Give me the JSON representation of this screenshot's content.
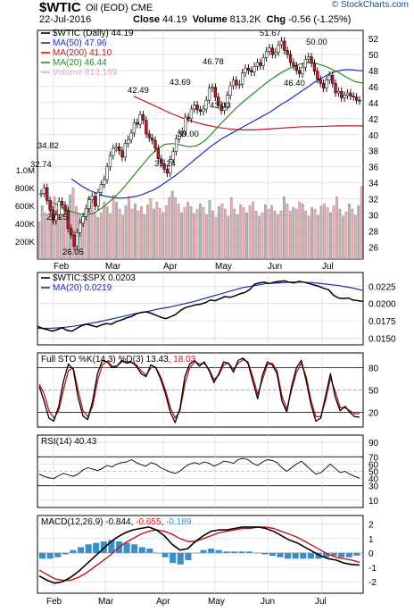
{
  "header": {
    "ticker": "$WTIC",
    "ticker_sub": "Oil (EOD)  CME",
    "logo": "© StockCharts.com",
    "date": "22-Jul-2016",
    "close_label": "Close",
    "close_value": "44.19",
    "volume_label": "Volume",
    "volume_value": "813.2K",
    "chg_label": "Chg",
    "chg_value": "-0.56 (-1.25%)"
  },
  "colors": {
    "price_line": "#000000",
    "ma50": "#1f2fb3",
    "ma200": "#c4141c",
    "ma20": "#2a8a2a",
    "volume_fill": "#e9aab0",
    "volume_fill_gray": "#b3b3b3",
    "macd_hist": "#3b8fc8",
    "grid": "#d0d0d0"
  },
  "chart_data": [
    {
      "type": "line",
      "panel": "price",
      "title": "$WTIC (Daily) 44.19",
      "ylim": [
        24.5,
        53
      ],
      "y_ticks": [
        26,
        28,
        30,
        32,
        34,
        36,
        38,
        40,
        42,
        44,
        46,
        48,
        50,
        52
      ],
      "x_tick_labels": [
        "Feb",
        "Mar",
        "Apr",
        "May",
        "Jun",
        "Jul"
      ],
      "legend": [
        {
          "name": "$WTIC (Daily) 44.19",
          "color": "#000000"
        },
        {
          "name": "MA(50) 47.96",
          "color": "#1f2fb3"
        },
        {
          "name": "MA(200) 41.10",
          "color": "#c4141c"
        },
        {
          "name": "MA(20) 46.44",
          "color": "#2a8a2a"
        },
        {
          "name": "Volume 813,189",
          "color": "#e9aab0"
        }
      ],
      "series": [
        {
          "name": "$WTIC",
          "values": [
            32.7,
            33.4,
            31.8,
            30.6,
            29.3,
            30.0,
            31.7,
            31.2,
            30.5,
            28.3,
            27.5,
            26.1,
            27.8,
            29.0,
            29.8,
            30.8,
            31.9,
            32.3,
            31.1,
            32.8,
            33.8,
            34.4,
            36.0,
            37.4,
            38.3,
            38.5,
            38.0,
            37.2,
            38.9,
            39.4,
            40.2,
            41.5,
            41.3,
            42.5,
            41.8,
            40.1,
            39.6,
            39.3,
            38.3,
            37.0,
            36.4,
            35.7,
            35.2,
            36.9,
            37.9,
            39.5,
            40.2,
            40.4,
            42.2,
            42.0,
            43.2,
            43.7,
            43.1,
            42.9,
            43.2,
            44.3,
            45.8,
            45.9,
            44.7,
            43.7,
            43.0,
            43.5,
            44.9,
            46.1,
            46.8,
            46.2,
            46.3,
            47.7,
            48.3,
            48.0,
            47.8,
            48.5,
            49.0,
            48.6,
            49.6,
            50.4,
            50.8,
            50.0,
            50.3,
            51.2,
            51.67,
            50.5,
            50.0,
            49.0,
            48.6,
            48.0,
            47.6,
            48.4,
            49.4,
            49.7,
            48.9,
            47.9,
            46.9,
            46.4,
            45.8,
            46.8,
            47.4,
            46.4,
            45.2,
            45.4,
            44.6,
            44.9,
            45.2,
            44.8,
            44.7,
            44.3,
            44.2
          ]
        },
        {
          "name": "MA(50)",
          "values": [
            34.5,
            34.0,
            33.5,
            33.1,
            32.8,
            32.5,
            32.3,
            32.2,
            32.1,
            32.1,
            32.2,
            32.3,
            32.5,
            32.8,
            33.1,
            33.5,
            34.0,
            34.5,
            35.0,
            35.6,
            36.2,
            36.8,
            37.4,
            38.0,
            38.6,
            39.1,
            39.6,
            40.0,
            40.4,
            40.8,
            41.2,
            41.6,
            42.0,
            42.4,
            42.8,
            43.3,
            43.8,
            44.2,
            44.7,
            45.2,
            45.7,
            46.2,
            46.7,
            47.1,
            47.5,
            47.8,
            48.0,
            48.1,
            48.1,
            48.0,
            47.96
          ]
        },
        {
          "name": "MA(200)",
          "values": [
            44.8,
            44.1,
            43.4,
            42.7,
            42.1,
            41.6,
            41.2,
            40.9,
            40.7,
            40.6,
            40.6,
            40.7,
            40.8,
            40.9,
            41.0,
            41.0,
            41.05,
            41.1,
            41.1,
            41.1
          ]
        },
        {
          "name": "MA(20)",
          "values": [
            31.5,
            31.0,
            30.5,
            30.2,
            30.0,
            30.2,
            30.8,
            31.6,
            32.5,
            33.6,
            34.8,
            36.0,
            37.2,
            38.2,
            38.8,
            38.9,
            38.7,
            38.5,
            38.6,
            39.2,
            40.2,
            41.3,
            42.3,
            43.3,
            44.2,
            45.0,
            45.8,
            46.6,
            47.3,
            47.9,
            48.4,
            48.8,
            49.0,
            48.9,
            48.6,
            48.2,
            47.7,
            47.1,
            46.6,
            46.44
          ]
        },
        {
          "name": "Volume",
          "unit": "shares",
          "values": [
            420000,
            600000,
            520000,
            480000,
            650000,
            700000,
            560000,
            480000,
            520000,
            610000,
            720000,
            800000,
            590000,
            510000,
            480000,
            560000,
            690000,
            610000,
            520000,
            470000,
            520000,
            640000,
            590000,
            510000,
            720000,
            640000,
            560000,
            490000,
            600000,
            700000,
            560000,
            620000,
            540000,
            590000,
            500000,
            610000,
            680000,
            560000,
            640000,
            570000,
            520000,
            600000,
            690000,
            760000,
            690000,
            620000,
            520000,
            580000,
            640000,
            590000,
            510000,
            560000,
            620000,
            580000,
            500000,
            660000,
            540000,
            470000,
            590000,
            620000,
            560000,
            480000,
            690000,
            560000,
            500000,
            610000,
            580000,
            520000,
            600000,
            640000,
            540000,
            480000,
            520000,
            610000,
            560000,
            600000,
            540000,
            500000,
            540000,
            700000,
            620000,
            540000,
            580000,
            560000,
            640000,
            620000,
            540000,
            480000,
            580000,
            560000,
            490000,
            600000,
            620000,
            580000,
            520000,
            600000,
            700000,
            560000,
            480000,
            530000,
            620000,
            560000,
            490000,
            600000,
            813189
          ]
        }
      ],
      "volume_axis": {
        "labels": [
          "200K",
          "400K",
          "600K",
          "800K",
          "1.0M"
        ],
        "values": [
          200000,
          400000,
          600000,
          800000,
          1000000
        ]
      },
      "annotations": [
        "34.82",
        "32.74",
        "29.25",
        "26.05",
        "42.49",
        "35.24",
        "39.00",
        "43.69",
        "46.78",
        "43.03",
        "51.67",
        "50.00",
        "46.40"
      ]
    },
    {
      "type": "line",
      "panel": "ratio",
      "title": "$WTIC:$SPX 0.0203",
      "ylim": [
        0.014,
        0.0245
      ],
      "y_ticks": [
        0.015,
        0.0175,
        0.02,
        0.0225
      ],
      "y_tick_labels": [
        "0.0150",
        "0.0175",
        "0.0200",
        "0.0225"
      ],
      "legend": [
        {
          "name": "$WTIC:$SPX 0.0203",
          "color": "#000000"
        },
        {
          "name": "MA(20) 0.0219",
          "color": "#1f2fb3"
        }
      ],
      "series": [
        {
          "name": "$WTIC:$SPX",
          "values": [
            0.0167,
            0.0164,
            0.0162,
            0.016,
            0.0162,
            0.0165,
            0.0161,
            0.016,
            0.0164,
            0.0168,
            0.017,
            0.0168,
            0.0166,
            0.0169,
            0.0171,
            0.017,
            0.0174,
            0.0176,
            0.0179,
            0.0181,
            0.0185,
            0.0187,
            0.0188,
            0.0186,
            0.0183,
            0.018,
            0.0178,
            0.0181,
            0.0184,
            0.019,
            0.0194,
            0.0196,
            0.0198,
            0.0199,
            0.0201,
            0.0205,
            0.0204,
            0.0207,
            0.021,
            0.0209,
            0.0211,
            0.0214,
            0.0216,
            0.022,
            0.0228,
            0.023,
            0.0231,
            0.0229,
            0.0231,
            0.0232,
            0.0233,
            0.0231,
            0.023,
            0.0232,
            0.0231,
            0.0229,
            0.0227,
            0.0225,
            0.0222,
            0.022,
            0.0212,
            0.0208,
            0.0207,
            0.0208,
            0.0205,
            0.0204,
            0.0203
          ]
        },
        {
          "name": "MA(20)",
          "values": [
            0.0164,
            0.0164,
            0.0165,
            0.0167,
            0.017,
            0.0173,
            0.0177,
            0.0181,
            0.0185,
            0.0188,
            0.0192,
            0.0195,
            0.0199,
            0.0203,
            0.0208,
            0.0213,
            0.0218,
            0.0223,
            0.0226,
            0.0229,
            0.023,
            0.0231,
            0.0231,
            0.023,
            0.0228,
            0.0226,
            0.0223,
            0.0219
          ]
        }
      ]
    },
    {
      "type": "line",
      "panel": "stochastic",
      "title": "Full STO %K(14,3) %D(3) 13.43, 18.03",
      "ylim": [
        0,
        100
      ],
      "y_ticks": [
        20,
        50,
        80
      ],
      "legend": [
        {
          "name": "%K(14,3) 13.43",
          "color": "#000000"
        },
        {
          "name": "%D(3) 18.03",
          "color": "#c4141c"
        }
      ],
      "series": [
        {
          "name": "%K",
          "values": [
            55,
            35,
            12,
            8,
            28,
            62,
            85,
            78,
            40,
            15,
            10,
            35,
            72,
            90,
            88,
            80,
            82,
            90,
            86,
            88,
            82,
            72,
            68,
            84,
            80,
            65,
            45,
            20,
            6,
            25,
            68,
            85,
            90,
            82,
            88,
            76,
            60,
            72,
            88,
            86,
            74,
            90,
            93,
            86,
            62,
            38,
            70,
            88,
            84,
            72,
            35,
            20,
            55,
            80,
            90,
            62,
            30,
            8,
            12,
            42,
            72,
            40,
            22,
            28,
            20,
            14,
            13.43
          ]
        },
        {
          "name": "%D",
          "values": [
            58,
            45,
            22,
            12,
            22,
            50,
            76,
            80,
            50,
            22,
            14,
            28,
            62,
            84,
            89,
            82,
            82,
            88,
            88,
            87,
            84,
            76,
            70,
            80,
            81,
            68,
            50,
            26,
            12,
            22,
            58,
            80,
            88,
            85,
            86,
            78,
            64,
            70,
            84,
            86,
            78,
            86,
            91,
            88,
            68,
            44,
            64,
            84,
            86,
            76,
            42,
            24,
            50,
            74,
            86,
            68,
            36,
            14,
            14,
            36,
            66,
            48,
            26,
            26,
            22,
            18,
            18.03
          ]
        }
      ]
    },
    {
      "type": "line",
      "panel": "rsi",
      "title": "RSI(14) 40.43",
      "ylim": [
        0,
        100
      ],
      "y_ticks": [
        10,
        30,
        40,
        50,
        60,
        70,
        90
      ],
      "series": [
        {
          "name": "RSI(14)",
          "values": [
            46,
            43,
            41,
            40,
            44,
            47,
            45,
            43,
            46,
            52,
            55,
            53,
            51,
            54,
            58,
            56,
            60,
            62,
            63,
            66,
            62,
            59,
            57,
            62,
            60,
            55,
            52,
            49,
            47,
            50,
            56,
            60,
            62,
            60,
            63,
            61,
            57,
            60,
            64,
            63,
            61,
            66,
            68,
            66,
            61,
            58,
            63,
            66,
            65,
            62,
            55,
            50,
            55,
            60,
            64,
            58,
            52,
            46,
            48,
            54,
            60,
            54,
            48,
            50,
            46,
            43,
            40.43
          ]
        }
      ]
    },
    {
      "type": "line",
      "panel": "macd",
      "title": "MACD(12,26,9) -0.844, -0.655, -0.189",
      "ylim": [
        -2.8,
        2.6
      ],
      "y_ticks": [
        -2,
        -1,
        0,
        1,
        2
      ],
      "legend": [
        {
          "name": "MACD(12,26,9) -0.844",
          "color": "#000000"
        },
        {
          "name": "Signal -0.655",
          "color": "#c4141c"
        },
        {
          "name": "Histogram -0.189",
          "color": "#3b8fc8"
        }
      ],
      "series": [
        {
          "name": "MACD",
          "values": [
            -1.6,
            -1.9,
            -2.1,
            -2.0,
            -1.7,
            -1.3,
            -0.8,
            -0.3,
            0.2,
            0.7,
            1.1,
            1.4,
            1.6,
            1.7,
            1.8,
            1.6,
            1.2,
            0.6,
            0.2,
            0.3,
            0.8,
            1.2,
            1.5,
            1.6,
            1.6,
            1.7,
            1.8,
            1.8,
            1.8,
            1.7,
            1.5,
            1.2,
            0.9,
            0.7,
            0.4,
            0.1,
            -0.2,
            -0.4,
            -0.5,
            -0.7,
            -0.8,
            -0.844
          ]
        },
        {
          "name": "Signal",
          "values": [
            -1.2,
            -1.5,
            -1.8,
            -1.9,
            -1.9,
            -1.7,
            -1.4,
            -1.0,
            -0.6,
            -0.2,
            0.3,
            0.7,
            1.0,
            1.3,
            1.5,
            1.6,
            1.5,
            1.3,
            1.0,
            0.8,
            0.8,
            1.0,
            1.2,
            1.4,
            1.5,
            1.6,
            1.7,
            1.7,
            1.8,
            1.8,
            1.7,
            1.5,
            1.3,
            1.1,
            0.8,
            0.5,
            0.2,
            -0.1,
            -0.3,
            -0.4,
            -0.5,
            -0.655
          ]
        },
        {
          "name": "Histogram",
          "values": [
            -0.4,
            -0.4,
            -0.3,
            -0.1,
            0.2,
            0.4,
            0.6,
            0.7,
            0.8,
            0.9,
            0.8,
            0.7,
            0.6,
            0.4,
            0.3,
            0.0,
            -0.3,
            -0.7,
            -0.8,
            -0.5,
            0.0,
            0.2,
            0.3,
            0.2,
            0.1,
            0.1,
            0.1,
            0.1,
            0.0,
            -0.1,
            -0.2,
            -0.3,
            -0.4,
            -0.4,
            -0.4,
            -0.4,
            -0.4,
            -0.3,
            -0.2,
            -0.3,
            -0.3,
            -0.189
          ]
        }
      ]
    }
  ]
}
